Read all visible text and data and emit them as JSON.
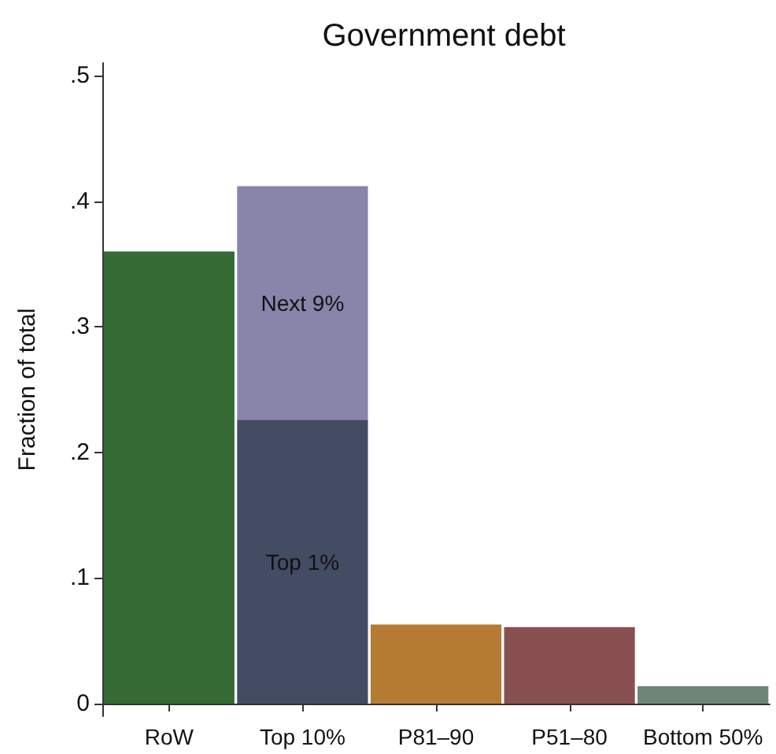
{
  "chart_data": {
    "type": "bar",
    "title": "Government debt",
    "ylabel": "Fraction of total",
    "categories": [
      "RoW",
      "Top 10%",
      "P81–90",
      "P51–80",
      "Bottom 50%"
    ],
    "stacked": true,
    "series": [
      {
        "colors": [
          "#356a35",
          null,
          "#b57b33",
          "#895052",
          "#6f8577"
        ],
        "values": [
          0.36,
          null,
          0.063,
          0.061,
          0.014
        ]
      },
      {
        "name": "Top 1%",
        "color": "#444c63",
        "values": [
          null,
          0.226,
          null,
          null,
          null
        ]
      },
      {
        "name": "Next 9%",
        "color": "#8884aa",
        "values": [
          null,
          0.186,
          null,
          null,
          null
        ]
      }
    ],
    "ylim": [
      -0.01,
      0.51
    ],
    "yticks": [
      {
        "value": 0,
        "label": "0"
      },
      {
        "value": 0.1,
        "label": ".1"
      },
      {
        "value": 0.2,
        "label": ".2"
      },
      {
        "value": 0.3,
        "label": ".3"
      },
      {
        "value": 0.4,
        "label": ".4"
      },
      {
        "value": 0.5,
        "label": ".5"
      }
    ],
    "grid": false
  }
}
